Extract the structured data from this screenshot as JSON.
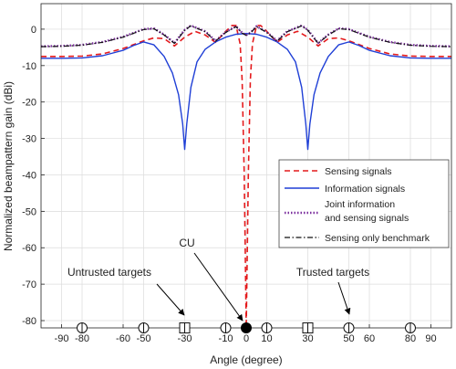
{
  "chart_data": {
    "type": "line",
    "xlabel": "Angle (degree)",
    "ylabel": "Normalized beampattern gain (dBi)",
    "xlim": [
      -100,
      100
    ],
    "ylim": [
      -82,
      7
    ],
    "grid": true,
    "x_ticks": [
      -90,
      -80,
      -60,
      -50,
      -30,
      -10,
      0,
      10,
      30,
      50,
      60,
      80,
      90
    ],
    "y_ticks": [
      0,
      -10,
      -20,
      -30,
      -40,
      -50,
      -60,
      -70,
      -80
    ],
    "colors": {
      "sensing": "#e41a1c",
      "information": "#1f3fd6",
      "joint": "#7b2f9e",
      "benchmark": "#111111"
    },
    "legend_position": "right",
    "series": [
      {
        "name": "Sensing signals",
        "style": "dashed",
        "x": [
          -100,
          -90,
          -80,
          -70,
          -60,
          -50,
          -45,
          -40,
          -35,
          -30,
          -25,
          -20,
          -15,
          -10,
          -7,
          -5,
          -3,
          -2,
          -1,
          0,
          1,
          2,
          3,
          5,
          7,
          10,
          15,
          20,
          25,
          30,
          35,
          40,
          45,
          50,
          60,
          70,
          80,
          90,
          100
        ],
        "y": [
          -7.5,
          -7.5,
          -7.4,
          -6.8,
          -5.3,
          -3.2,
          -2.4,
          -2.6,
          -4.6,
          -2.2,
          -0.6,
          -1.6,
          -3.6,
          -0.6,
          1,
          1,
          -4,
          -14,
          -40,
          -82,
          -40,
          -14,
          -4,
          1,
          1,
          -0.6,
          -3.6,
          -1.6,
          -0.6,
          -2.2,
          -4.6,
          -2.6,
          -2.4,
          -3.2,
          -5.3,
          -6.8,
          -7.4,
          -7.5,
          -7.5
        ]
      },
      {
        "name": "Information signals",
        "style": "solid",
        "x": [
          -100,
          -90,
          -80,
          -70,
          -60,
          -55,
          -50,
          -45,
          -40,
          -36,
          -33,
          -31,
          -30,
          -29,
          -27,
          -24,
          -20,
          -15,
          -10,
          -5,
          0,
          5,
          10,
          15,
          20,
          24,
          27,
          29,
          30,
          31,
          33,
          36,
          40,
          45,
          50,
          55,
          60,
          70,
          80,
          90,
          100
        ],
        "y": [
          -8,
          -8,
          -7.9,
          -7.3,
          -5.8,
          -4.5,
          -3.5,
          -4.3,
          -7.5,
          -12,
          -18,
          -26,
          -33,
          -26,
          -16,
          -9,
          -5.5,
          -3.5,
          -2.2,
          -1.4,
          -1.2,
          -1.4,
          -2.2,
          -3.5,
          -5.5,
          -9,
          -16,
          -26,
          -33,
          -26,
          -18,
          -12,
          -7.5,
          -4.3,
          -3.5,
          -4.5,
          -5.8,
          -7.3,
          -7.9,
          -8,
          -8
        ]
      },
      {
        "name": "Joint information and sensing signals",
        "style": "dotted",
        "x": [
          -100,
          -90,
          -80,
          -70,
          -60,
          -50,
          -45,
          -40,
          -35,
          -30,
          -27,
          -20,
          -15,
          -10,
          -5,
          -2,
          0,
          2,
          5,
          10,
          15,
          20,
          27,
          30,
          35,
          40,
          45,
          50,
          60,
          70,
          80,
          90,
          100
        ],
        "y": [
          -4.7,
          -4.6,
          -4.3,
          -3.5,
          -2.1,
          0,
          0.2,
          -1.5,
          -3.8,
          -0.2,
          1,
          -0.6,
          -3.2,
          -0.8,
          0.8,
          -1,
          -1.6,
          -1,
          0.8,
          -0.8,
          -3.2,
          -0.6,
          1,
          -0.2,
          -3.8,
          -1.5,
          0.2,
          0,
          -2.1,
          -3.5,
          -4.3,
          -4.6,
          -4.7
        ]
      },
      {
        "name": "Sensing only benchmark",
        "style": "dashdot",
        "x": [
          -100,
          -90,
          -80,
          -70,
          -60,
          -50,
          -45,
          -40,
          -35,
          -30,
          -27,
          -20,
          -15,
          -10,
          -5,
          -2,
          0,
          2,
          5,
          10,
          15,
          20,
          27,
          30,
          35,
          40,
          45,
          50,
          60,
          70,
          80,
          90,
          100
        ],
        "y": [
          -4.8,
          -4.7,
          -4.4,
          -3.6,
          -2.2,
          -0.1,
          0.1,
          -1.6,
          -3.9,
          -0.3,
          0.9,
          -0.7,
          -3.3,
          -0.9,
          0.7,
          -1.1,
          -1.7,
          -1.1,
          0.7,
          -0.9,
          -3.3,
          -0.7,
          0.9,
          -0.3,
          -3.9,
          -1.6,
          0.1,
          -0.1,
          -2.2,
          -3.6,
          -4.4,
          -4.7,
          -4.8
        ]
      }
    ],
    "legend_entries": [
      {
        "label": "Sensing signals",
        "style": "dashed"
      },
      {
        "label": "Information signals",
        "style": "solid"
      },
      {
        "label": "Joint information",
        "label2": "and sensing signals",
        "style": "dotted"
      },
      {
        "label": "Sensing only benchmark",
        "style": "dashdot"
      }
    ],
    "markers": {
      "untrusted_targets": [
        -80,
        -50,
        -10,
        10,
        80
      ],
      "trusted_targets": [
        -30,
        30
      ],
      "target_circle": [
        50
      ],
      "cu": [
        0
      ],
      "y": -82
    },
    "annotations": [
      {
        "text": "Untrusted targets",
        "arrow_to_x": -30
      },
      {
        "text": "CU",
        "arrow_to_x": 0
      },
      {
        "text": "Trusted targets",
        "arrow_to_x": 50
      }
    ]
  }
}
